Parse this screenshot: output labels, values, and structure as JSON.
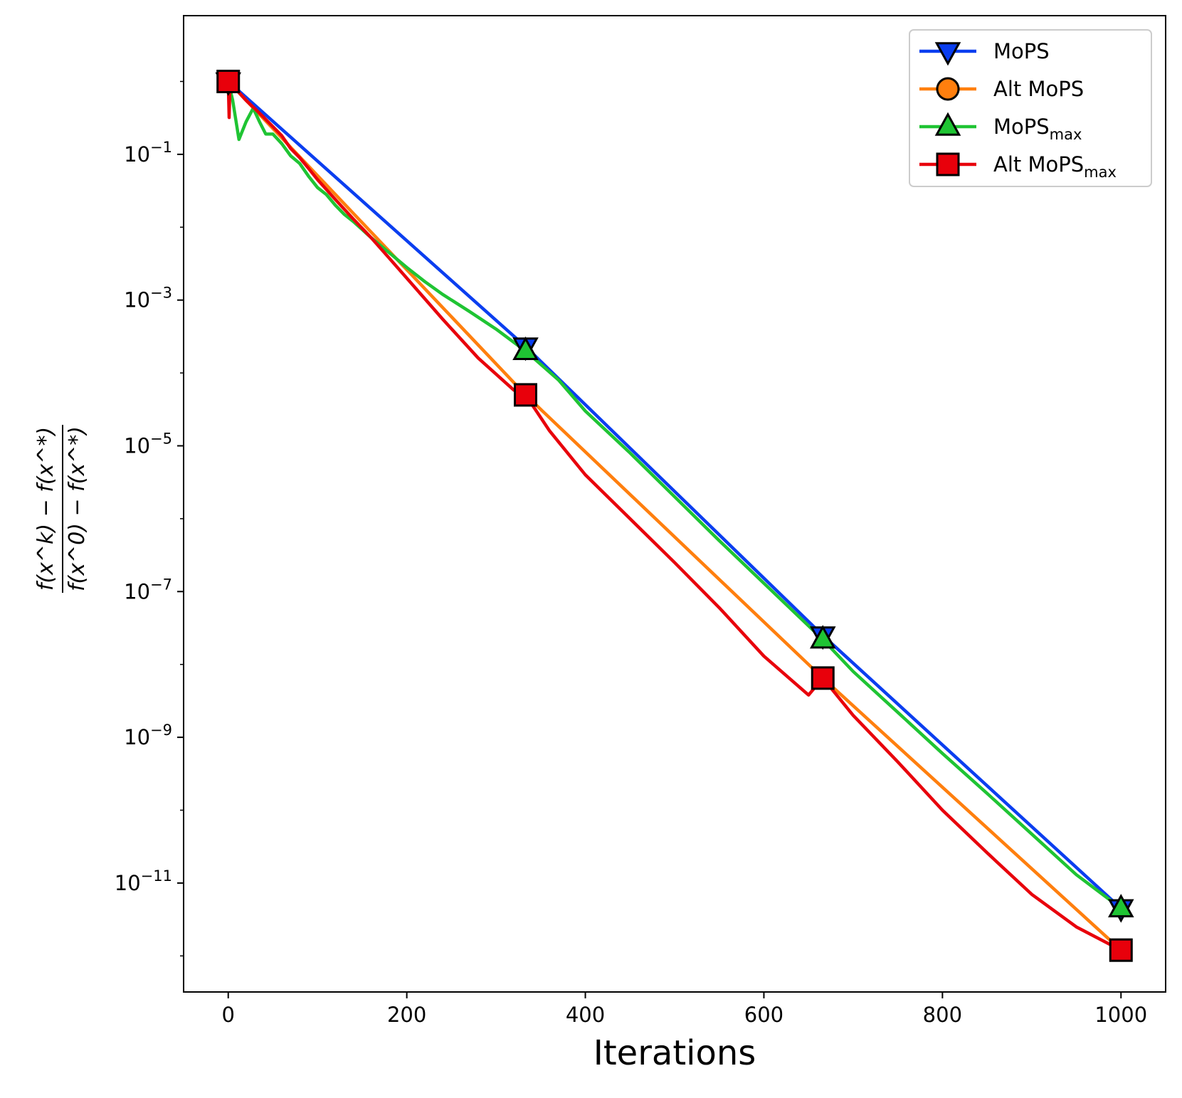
{
  "chart_data": {
    "type": "line",
    "title": "",
    "xlabel": "Iterations",
    "ylabel": {
      "numerator": "f(x^k) − f(x^*)",
      "denominator": "f(x^0) − f(x^*)"
    },
    "xscale": "linear",
    "yscale": "log",
    "xlim": [
      -50,
      1050
    ],
    "ylim": [
      3.2e-13,
      8
    ],
    "xticks": [
      0,
      200,
      400,
      600,
      800,
      1000
    ],
    "xtick_labels": [
      "0",
      "200",
      "400",
      "600",
      "800",
      "1000"
    ],
    "yticks": [
      -1,
      -3,
      -5,
      -7,
      -9,
      -11
    ],
    "ytick_labels": [
      {
        "base": "10",
        "exp": "−1"
      },
      {
        "base": "10",
        "exp": "−3"
      },
      {
        "base": "10",
        "exp": "−5"
      },
      {
        "base": "10",
        "exp": "−7"
      },
      {
        "base": "10",
        "exp": "−9"
      },
      {
        "base": "10",
        "exp": "−11"
      }
    ],
    "legend_position": "top-right",
    "series": [
      {
        "name": "MoPS",
        "sub": "",
        "color": "#0a3ef0",
        "marker": "triangle-down",
        "x": [
          0,
          333,
          666,
          1000
        ],
        "y": [
          1.0,
          0.00023,
          2.5e-08,
          4.5e-12
        ],
        "markers_x": [
          0,
          333,
          666,
          1000
        ],
        "markers_y": [
          1.0,
          0.00023,
          2.5e-08,
          4.5e-12
        ]
      },
      {
        "name": "Alt MoPS",
        "sub": "",
        "color": "#ff7f0e",
        "marker": "circle",
        "x": [
          0,
          333,
          666,
          1000
        ],
        "y": [
          1.0,
          5e-05,
          6.5e-09,
          1.2e-12
        ],
        "markers_x": [],
        "markers_y": []
      },
      {
        "name": "MoPS",
        "sub": "max",
        "color": "#1fc433",
        "marker": "triangle-up",
        "x": [
          0,
          5,
          12,
          20,
          28,
          35,
          42,
          50,
          60,
          70,
          80,
          90,
          100,
          110,
          120,
          130,
          140,
          160,
          180,
          200,
          220,
          240,
          270,
          300,
          333,
          370,
          400,
          450,
          500,
          550,
          600,
          666,
          700,
          750,
          800,
          850,
          900,
          950,
          1000
        ],
        "y": [
          1.0,
          0.55,
          0.16,
          0.28,
          0.43,
          0.28,
          0.19,
          0.19,
          0.14,
          0.095,
          0.075,
          0.05,
          0.035,
          0.028,
          0.02,
          0.015,
          0.012,
          0.0072,
          0.0045,
          0.0028,
          0.0018,
          0.0012,
          0.0007,
          0.0004,
          0.0002,
          8e-05,
          3e-05,
          8e-06,
          2e-06,
          5e-07,
          1.3e-07,
          2.2e-08,
          8e-09,
          2.2e-09,
          6e-10,
          1.7e-10,
          4.7e-11,
          1.3e-11,
          4.5e-12
        ],
        "markers_x": [
          333,
          666,
          1000
        ],
        "markers_y": [
          0.0002,
          2.2e-08,
          4.5e-12
        ]
      },
      {
        "name": "Alt MoPS",
        "sub": "max",
        "color": "#e8000b",
        "marker": "square",
        "x": [
          0,
          1,
          2,
          3,
          5,
          10,
          20,
          30,
          40,
          50,
          60,
          70,
          80,
          90,
          100,
          120,
          140,
          160,
          180,
          200,
          240,
          280,
          320,
          333,
          360,
          400,
          450,
          500,
          550,
          600,
          650,
          666,
          700,
          750,
          800,
          850,
          900,
          950,
          1000
        ],
        "y": [
          1.0,
          0.32,
          1.0,
          0.88,
          0.95,
          0.75,
          0.55,
          0.42,
          0.32,
          0.24,
          0.18,
          0.12,
          0.09,
          0.064,
          0.045,
          0.024,
          0.013,
          0.0072,
          0.0038,
          0.002,
          0.00055,
          0.00016,
          5.8e-05,
          5e-05,
          1.6e-05,
          4e-06,
          1e-06,
          2.5e-07,
          6e-08,
          1.3e-08,
          3.8e-09,
          6.5e-09,
          2e-09,
          4.6e-10,
          1e-10,
          2.6e-11,
          7e-12,
          2.5e-12,
          1.2e-12
        ],
        "markers_x": [
          0,
          333,
          666,
          1000
        ],
        "markers_y": [
          1.0,
          5e-05,
          6.5e-09,
          1.2e-12
        ]
      }
    ]
  }
}
